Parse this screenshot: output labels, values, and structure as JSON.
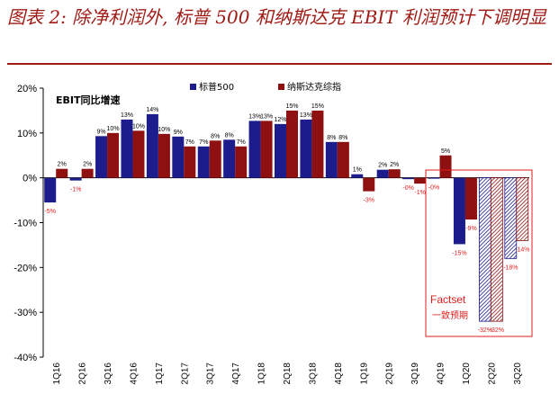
{
  "title": "图表 2: 除净利润外, 标普 500 和纳斯达克 EBIT 利润预计下调明显",
  "chart_data": {
    "type": "bar",
    "subtitle": "EBIT同比增速",
    "categories": [
      "1Q16",
      "2Q16",
      "3Q16",
      "4Q16",
      "1Q17",
      "2Q17",
      "3Q17",
      "4Q17",
      "1Q18",
      "2Q18",
      "3Q18",
      "4Q18",
      "1Q19",
      "2Q19",
      "3Q19",
      "4Q19",
      "1Q20",
      "2Q20",
      "3Q20"
    ],
    "ylim": [
      -40,
      20
    ],
    "yticks": [
      "20%",
      "10%",
      "0%",
      "-10%",
      "-20%",
      "-30%",
      "-40%"
    ],
    "series": [
      {
        "name": "标普500",
        "color": "#1c1c8c",
        "values": [
          -5.5,
          -0.6,
          9.3,
          13,
          14.2,
          9.2,
          7,
          8.5,
          12.7,
          12,
          13,
          8,
          0.8,
          1.8,
          -0.3,
          -0.2,
          -14.8,
          -32,
          -18
        ],
        "labels": [
          "-5%",
          "-1%",
          "9%",
          "13%",
          "14%",
          "9%",
          "7%",
          "8%",
          "13%",
          "12%",
          "13%",
          "8%",
          "1%",
          "2%",
          "-0%",
          "-0%",
          "-15%",
          "-32%",
          "-18%"
        ]
      },
      {
        "name": "纳斯达克综指",
        "color": "#8e1010",
        "values": [
          2,
          2,
          10,
          10.5,
          9.8,
          7,
          8.3,
          7,
          12.7,
          15,
          15,
          8,
          -3,
          1.9,
          -1.3,
          5,
          -9.3,
          -32,
          -14
        ],
        "labels": [
          "2%",
          "2%",
          "10%",
          "10%",
          "10%",
          "7%",
          "8%",
          "7%",
          "13%",
          "15%",
          "15%",
          "8%",
          "-3%",
          "2%",
          "-1%",
          "5%",
          "-9%",
          "-32%",
          "-14%"
        ]
      }
    ],
    "forecast_from_index": 17,
    "annotation": {
      "line1": "Factset",
      "line2": "一致预期"
    }
  }
}
